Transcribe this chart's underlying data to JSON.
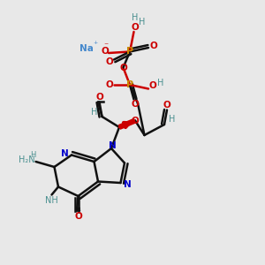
{
  "background_color": "#e8e8e8",
  "atom_colors": {
    "C": "#000000",
    "N": "#0000cc",
    "O": "#cc0000",
    "P": "#cc8800",
    "H": "#4a9090",
    "Na": "#4488cc",
    "bond": "#000000",
    "minus": "#cc0000",
    "plus": "#4488cc"
  },
  "figsize": [
    3.0,
    3.0
  ],
  "dpi": 100
}
